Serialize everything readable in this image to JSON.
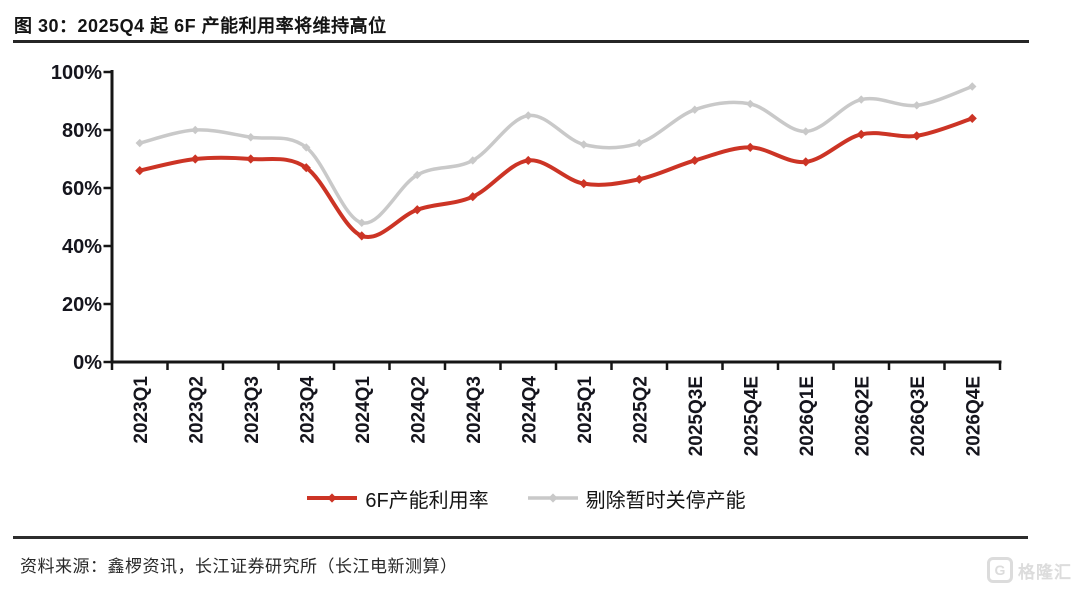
{
  "title": "图 30：2025Q4 起 6F 产能利用率将维持高位",
  "source": "资料来源：鑫椤资讯，长江证券研究所（长江电新测算）",
  "watermark": {
    "icon_letter": "G",
    "text": "格隆汇"
  },
  "colors": {
    "series_6f": "#cc3425",
    "series_excluded": "#c9c9c9",
    "axis": "#161616",
    "tick_label": "#15151d"
  },
  "y_axis": {
    "tick_labels": [
      "0%",
      "20%",
      "40%",
      "60%",
      "80%",
      "100%"
    ],
    "tick_values": [
      0,
      20,
      40,
      60,
      80,
      100
    ]
  },
  "chart_data": {
    "type": "line",
    "title": "",
    "xlabel": "",
    "ylabel": "",
    "ylim": [
      0,
      100
    ],
    "y_tick_step": 20,
    "grid": false,
    "smooth": true,
    "legend_position": "bottom",
    "categories": [
      "2023Q1",
      "2023Q2",
      "2023Q3",
      "2023Q4",
      "2024Q1",
      "2024Q2",
      "2024Q3",
      "2024Q4",
      "2025Q1",
      "2025Q2",
      "2025Q3E",
      "2025Q4E",
      "2026Q1E",
      "2026Q2E",
      "2026Q3E",
      "2026Q4E"
    ],
    "series": [
      {
        "name": "6F产能利用率",
        "color": "#cc3425",
        "marker": "diamond",
        "values": [
          66,
          70,
          70,
          67,
          43.5,
          52.5,
          57,
          69.5,
          61.5,
          63,
          69.5,
          74,
          69,
          78.5,
          78,
          84
        ]
      },
      {
        "name": "剔除暂时关停产能",
        "color": "#c9c9c9",
        "marker": "diamond",
        "values": [
          75.5,
          80,
          77.5,
          74,
          48,
          64.5,
          69.5,
          85,
          75,
          75.5,
          87,
          89,
          79.5,
          90.5,
          88.5,
          95
        ]
      }
    ]
  }
}
